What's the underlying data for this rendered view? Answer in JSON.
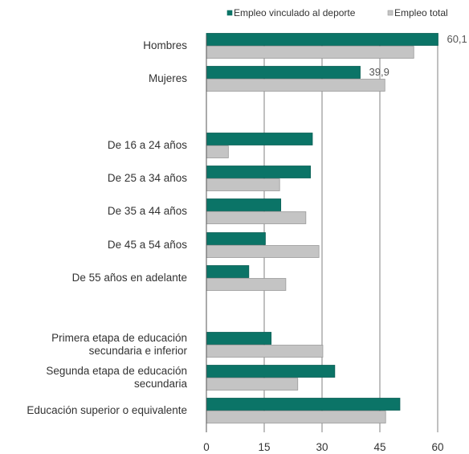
{
  "chart_data": {
    "type": "bar",
    "orientation": "horizontal",
    "categories": [
      [
        "Hombres"
      ],
      [
        "Mujeres"
      ],
      [],
      [
        "De 16 a 24 años"
      ],
      [
        "De 25 a 34 años"
      ],
      [
        "De 35 a 44 años"
      ],
      [
        "De 45 a 54 años"
      ],
      [
        "De 55 años en adelante"
      ],
      [],
      [
        "Primera etapa de educación",
        "secundaria e inferior"
      ],
      [
        "Segunda etapa de educación",
        "secundaria"
      ],
      [
        "Educación superior o equivalente"
      ]
    ],
    "series": [
      {
        "name": "Empleo vinculado al deporte",
        "color": "#0b7467",
        "values": [
          60.1,
          39.9,
          null,
          27.5,
          27,
          19.3,
          15.3,
          11,
          null,
          16.8,
          33.3,
          50.2
        ]
      },
      {
        "name": "Empleo total",
        "color": "#c4c4c4",
        "values": [
          53.8,
          46.3,
          null,
          5.7,
          19,
          25.8,
          29.2,
          20.6,
          null,
          30.2,
          23.7,
          46.5
        ]
      }
    ],
    "data_labels": [
      {
        "series": 0,
        "index": 0,
        "text": "60,1"
      },
      {
        "series": 0,
        "index": 1,
        "text": "39,9"
      }
    ],
    "xticks": [
      "0",
      "15",
      "30",
      "45",
      "60"
    ],
    "xlim": [
      0,
      60
    ],
    "grid": "vertical",
    "legend": "top-right"
  }
}
